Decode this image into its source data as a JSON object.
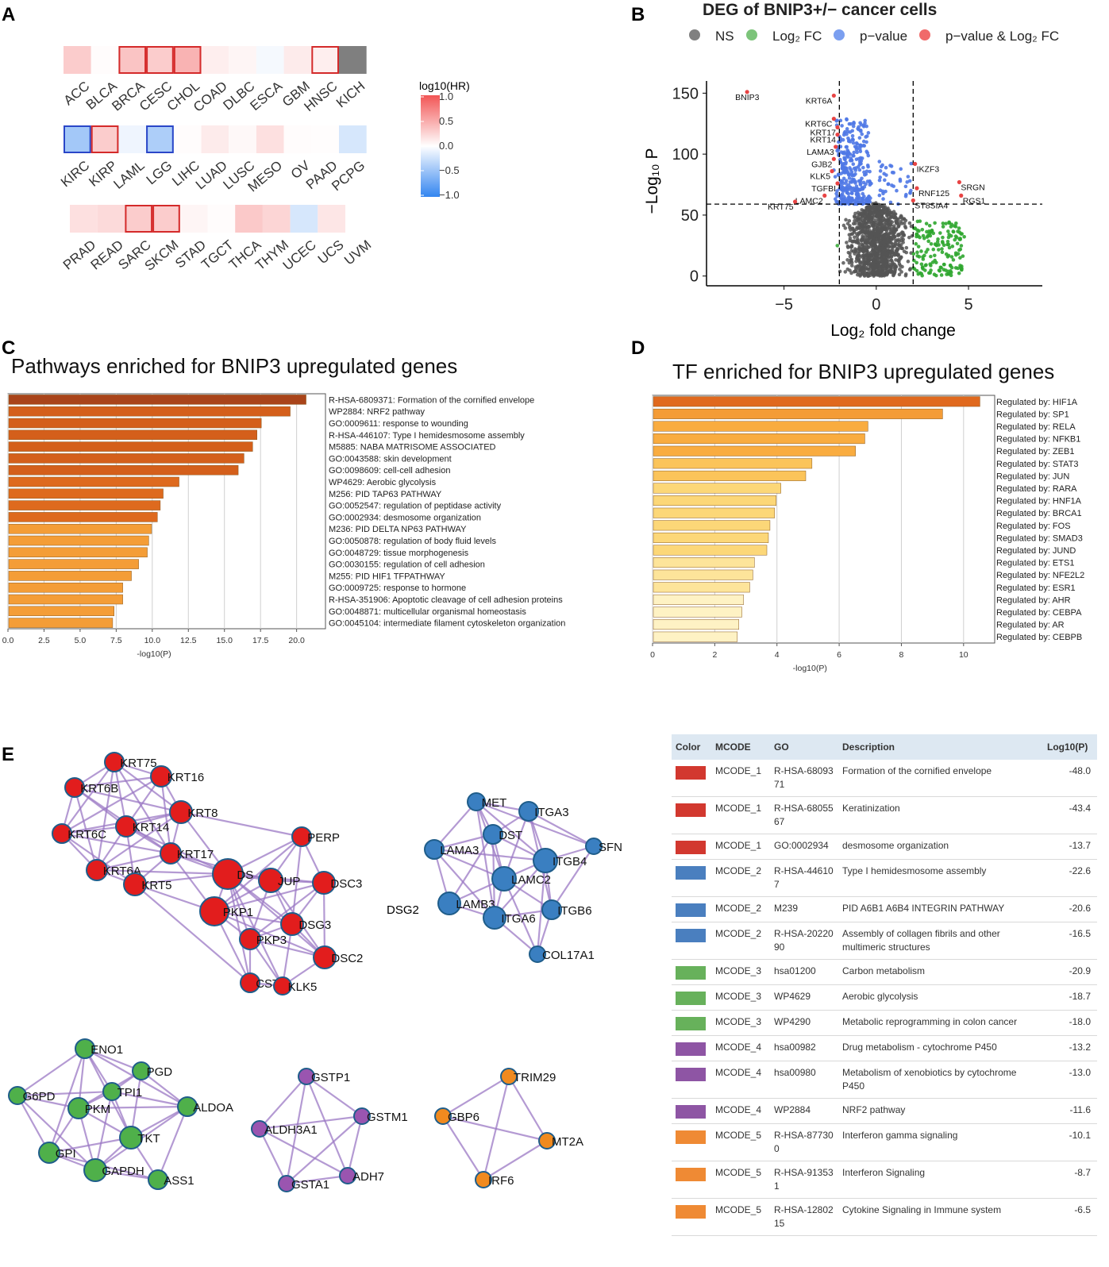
{
  "panels": {
    "A": {
      "letter": "A",
      "legend_title": "log10(HR)",
      "legend_ticks": [
        "1.0",
        "0.5",
        "0.0",
        "−0.5",
        "−1.0"
      ],
      "legend_range": [
        -1.0,
        1.0
      ],
      "rows": [
        {
          "cancers": [
            "ACC",
            "BLCA",
            "BRCA",
            "CESC",
            "CHOL",
            "COAD",
            "DLBC",
            "ESCA",
            "GBM",
            "HNSC",
            "KICH"
          ],
          "values": [
            0.3,
            0.02,
            0.35,
            0.3,
            0.45,
            0.1,
            0.06,
            -0.05,
            0.12,
            0.1,
            null
          ],
          "significant": [
            false,
            false,
            true,
            true,
            true,
            false,
            false,
            false,
            false,
            true,
            false
          ]
        },
        {
          "cancers": [
            "KIRC",
            "KIRP",
            "LAML",
            "LGG",
            "LIHC",
            "LUAD",
            "LUSC",
            "MESO",
            "OV",
            "PAAD",
            "PCPG"
          ],
          "values": [
            -0.45,
            0.3,
            -0.08,
            -0.4,
            0.02,
            0.12,
            0.04,
            0.18,
            0.02,
            0.01,
            -0.2
          ],
          "significant": [
            true,
            true,
            false,
            true,
            false,
            false,
            false,
            false,
            false,
            false,
            false
          ]
        },
        {
          "cancers": [
            "PRAD",
            "READ",
            "SARC",
            "SKCM",
            "STAD",
            "TGCT",
            "THCA",
            "THYM",
            "UCEC",
            "UCS",
            "UVM"
          ],
          "values": [
            0.18,
            0.22,
            0.3,
            0.3,
            0.06,
            0.02,
            0.32,
            0.25,
            -0.2,
            0.15,
            0.0
          ],
          "significant": [
            false,
            false,
            true,
            true,
            false,
            false,
            false,
            false,
            false,
            false,
            false
          ]
        }
      ]
    },
    "B": {
      "letter": "B",
      "title": "DEG of BNIP3+/− cancer cells",
      "legend": [
        {
          "label": "NS",
          "color": "#808080"
        },
        {
          "label": "Log₂ FC",
          "color": "#7cc47a"
        },
        {
          "label": "p−value",
          "color": "#7b9ff0"
        },
        {
          "label": "p−value & Log₂ FC",
          "color": "#f06a6a"
        }
      ],
      "y_axis_label": "−Log₁₀ P",
      "x_axis_label": "Log₂ fold change",
      "x_ticks": [
        -5,
        0,
        5
      ],
      "x_tick_labels": [
        "−5",
        "0",
        "5"
      ],
      "y_ticks": [
        0,
        50,
        100,
        150
      ],
      "xlim": [
        -9.2,
        9.0
      ],
      "ylim": [
        -8,
        160
      ],
      "fc_cutoff": 2,
      "p_cutoff": 59,
      "labels": [
        {
          "gene": "BNIP3",
          "x": -7.0,
          "y": 151
        },
        {
          "gene": "KRT6A",
          "x": -2.3,
          "y": 148
        },
        {
          "gene": "KRT6C",
          "x": -2.3,
          "y": 129
        },
        {
          "gene": "KRT17",
          "x": -2.1,
          "y": 122
        },
        {
          "gene": "KRT14",
          "x": -2.1,
          "y": 116
        },
        {
          "gene": "LAMA3",
          "x": -2.2,
          "y": 106
        },
        {
          "gene": "GJB2",
          "x": -2.3,
          "y": 96
        },
        {
          "gene": "KLK5",
          "x": -2.4,
          "y": 86
        },
        {
          "gene": "TGFBI",
          "x": -2.1,
          "y": 76
        },
        {
          "gene": "LAMC2",
          "x": -2.8,
          "y": 66
        },
        {
          "gene": "KRT75",
          "x": -4.4,
          "y": 61
        },
        {
          "gene": "IKZF3",
          "x": 2.1,
          "y": 92
        },
        {
          "gene": "SRGN",
          "x": 4.5,
          "y": 77
        },
        {
          "gene": "RNF125",
          "x": 2.2,
          "y": 72
        },
        {
          "gene": "RGS1",
          "x": 4.6,
          "y": 66
        },
        {
          "gene": "ST8SIA4",
          "x": 2.0,
          "y": 62
        }
      ]
    },
    "C": {
      "letter": "C",
      "title": "Pathways enriched for BNIP3 upregulated genes",
      "x_label": "-log10(P)",
      "x_ticks": [
        "0.0",
        "2.5",
        "5.0",
        "7.5",
        "10.0",
        "12.5",
        "15.0",
        "17.5",
        "20.0"
      ],
      "max": 22,
      "items": [
        {
          "label": "R-HSA-6809371: Formation of the cornified envelope",
          "value": 20.6,
          "color": "#a9441a"
        },
        {
          "label": "WP2884: NRF2 pathway",
          "value": 19.5,
          "color": "#d45f1b"
        },
        {
          "label": "GO:0009611: response to wounding",
          "value": 17.5,
          "color": "#d45f1b"
        },
        {
          "label": "R-HSA-446107: Type I hemidesmosome assembly",
          "value": 17.2,
          "color": "#d45f1b"
        },
        {
          "label": "M5885: NABA MATRISOME ASSOCIATED",
          "value": 16.9,
          "color": "#d45f1b"
        },
        {
          "label": "GO:0043588: skin development",
          "value": 16.3,
          "color": "#d45f1b"
        },
        {
          "label": "GO:0098609: cell-cell adhesion",
          "value": 15.9,
          "color": "#d45f1b"
        },
        {
          "label": "WP4629: Aerobic glycolysis",
          "value": 11.8,
          "color": "#de6a1e"
        },
        {
          "label": "M256: PID TAP63 PATHWAY",
          "value": 10.7,
          "color": "#de6a1e"
        },
        {
          "label": "GO:0052547: regulation of peptidase activity",
          "value": 10.5,
          "color": "#de6a1e"
        },
        {
          "label": "GO:0002934: desmosome organization",
          "value": 10.3,
          "color": "#de6a1e"
        },
        {
          "label": "M236: PID DELTA NP63 PATHWAY",
          "value": 9.9,
          "color": "#f49d37"
        },
        {
          "label": "GO:0050878: regulation of body fluid levels",
          "value": 9.7,
          "color": "#f49d37"
        },
        {
          "label": "GO:0048729: tissue morphogenesis",
          "value": 9.6,
          "color": "#f49d37"
        },
        {
          "label": "GO:0030155: regulation of cell adhesion",
          "value": 9.0,
          "color": "#f49d37"
        },
        {
          "label": "M255: PID HIF1 TFPATHWAY",
          "value": 8.5,
          "color": "#f49d37"
        },
        {
          "label": "GO:0009725: response to hormone",
          "value": 7.9,
          "color": "#f49d37"
        },
        {
          "label": "R-HSA-351906: Apoptotic cleavage of cell adhesion  proteins",
          "value": 7.9,
          "color": "#f49d37"
        },
        {
          "label": "GO:0048871: multicellular organismal homeostasis",
          "value": 7.3,
          "color": "#f49d37"
        },
        {
          "label": "GO:0045104: intermediate filament cytoskeleton organization",
          "value": 7.2,
          "color": "#f49d37"
        }
      ]
    },
    "D": {
      "letter": "D",
      "title": "TF enriched for BNIP3 upregulated genes",
      "x_label": "-log10(P)",
      "x_ticks": [
        "0",
        "2",
        "4",
        "6",
        "8",
        "10"
      ],
      "max": 11,
      "items": [
        {
          "label": "Regulated by: HIF1A",
          "value": 10.5,
          "color": "#e0691e"
        },
        {
          "label": "Regulated by: SP1",
          "value": 9.3,
          "color": "#f49c36"
        },
        {
          "label": "Regulated by: RELA",
          "value": 6.9,
          "color": "#f9ac40"
        },
        {
          "label": "Regulated by: NFKB1",
          "value": 6.8,
          "color": "#f9ac40"
        },
        {
          "label": "Regulated by: ZEB1",
          "value": 6.5,
          "color": "#f9ac40"
        },
        {
          "label": "Regulated by: STAT3",
          "value": 5.1,
          "color": "#fbc45a"
        },
        {
          "label": "Regulated by: JUN",
          "value": 4.9,
          "color": "#fbc45a"
        },
        {
          "label": "Regulated by: RARA",
          "value": 4.1,
          "color": "#fcd778"
        },
        {
          "label": "Regulated by: HNF1A",
          "value": 3.95,
          "color": "#fcd778"
        },
        {
          "label": "Regulated by: BRCA1",
          "value": 3.9,
          "color": "#fcd778"
        },
        {
          "label": "Regulated by: FOS",
          "value": 3.75,
          "color": "#fcd778"
        },
        {
          "label": "Regulated by: SMAD3",
          "value": 3.7,
          "color": "#fcd778"
        },
        {
          "label": "Regulated by: JUND",
          "value": 3.65,
          "color": "#fcd778"
        },
        {
          "label": "Regulated by: ETS1",
          "value": 3.25,
          "color": "#fde49a"
        },
        {
          "label": "Regulated by: NFE2L2",
          "value": 3.2,
          "color": "#fde49a"
        },
        {
          "label": "Regulated by: ESR1",
          "value": 3.1,
          "color": "#fde49a"
        },
        {
          "label": "Regulated by: AHR",
          "value": 2.9,
          "color": "#fef2c4"
        },
        {
          "label": "Regulated by: CEBPA",
          "value": 2.85,
          "color": "#fef2c4"
        },
        {
          "label": "Regulated by: AR",
          "value": 2.75,
          "color": "#fef2c4"
        },
        {
          "label": "Regulated by: CEBPB",
          "value": 2.7,
          "color": "#fef2c4"
        }
      ]
    },
    "E": {
      "letter": "E",
      "extra_label": "DSG2",
      "table": {
        "headers": [
          "Color",
          "MCODE",
          "GO",
          "Description",
          "Log10(P)"
        ],
        "rows": [
          {
            "color": "#d2382f",
            "mcode": "MCODE_1",
            "go": "R-HSA-6809371",
            "description": "Formation of the cornified envelope",
            "logp": "-48.0"
          },
          {
            "color": "#d2382f",
            "mcode": "MCODE_1",
            "go": "R-HSA-6805567",
            "description": "Keratinization",
            "logp": "-43.4"
          },
          {
            "color": "#d2382f",
            "mcode": "MCODE_1",
            "go": "GO:0002934",
            "description": "desmosome organization",
            "logp": "-13.7"
          },
          {
            "color": "#4a7fbf",
            "mcode": "MCODE_2",
            "go": "R-HSA-446107",
            "description": "Type I hemidesmosome assembly",
            "logp": "-22.6"
          },
          {
            "color": "#4a7fbf",
            "mcode": "MCODE_2",
            "go": "M239",
            "description": "PID A6B1 A6B4 INTEGRIN PATHWAY",
            "logp": "-20.6"
          },
          {
            "color": "#4a7fbf",
            "mcode": "MCODE_2",
            "go": "R-HSA-2022090",
            "description": "Assembly of collagen fibrils and other multimeric structures",
            "logp": "-16.5"
          },
          {
            "color": "#67b15b",
            "mcode": "MCODE_3",
            "go": "hsa01200",
            "description": "Carbon metabolism",
            "logp": "-20.9"
          },
          {
            "color": "#67b15b",
            "mcode": "MCODE_3",
            "go": "WP4629",
            "description": "Aerobic glycolysis",
            "logp": "-18.7"
          },
          {
            "color": "#67b15b",
            "mcode": "MCODE_3",
            "go": "WP4290",
            "description": "Metabolic reprogramming in colon cancer",
            "logp": "-18.0"
          },
          {
            "color": "#8e55a4",
            "mcode": "MCODE_4",
            "go": "hsa00982",
            "description": "Drug metabolism - cytochrome P450",
            "logp": "-13.2"
          },
          {
            "color": "#8e55a4",
            "mcode": "MCODE_4",
            "go": "hsa00980",
            "description": "Metabolism of xenobiotics by cytochrome P450",
            "logp": "-13.0"
          },
          {
            "color": "#8e55a4",
            "mcode": "MCODE_4",
            "go": "WP2884",
            "description": "NRF2 pathway",
            "logp": "-11.6"
          },
          {
            "color": "#ef8a34",
            "mcode": "MCODE_5",
            "go": "R-HSA-877300",
            "description": "Interferon gamma signaling",
            "logp": "-10.1"
          },
          {
            "color": "#ef8a34",
            "mcode": "MCODE_5",
            "go": "R-HSA-913531",
            "description": "Interferon Signaling",
            "logp": "-8.7"
          },
          {
            "color": "#ef8a34",
            "mcode": "MCODE_5",
            "go": "R-HSA-1280215",
            "description": "Cytokine Signaling in Immune system",
            "logp": "-6.5"
          }
        ]
      }
    }
  },
  "chart_data": [
    {
      "type": "heatmap",
      "title": "",
      "legend_title": "log10(HR)",
      "categories": [
        "ACC",
        "BLCA",
        "BRCA",
        "CESC",
        "CHOL",
        "COAD",
        "DLBC",
        "ESCA",
        "GBM",
        "HNSC",
        "KICH",
        "KIRC",
        "KIRP",
        "LAML",
        "LGG",
        "LIHC",
        "LUAD",
        "LUSC",
        "MESO",
        "OV",
        "PAAD",
        "PCPG",
        "PRAD",
        "READ",
        "SARC",
        "SKCM",
        "STAD",
        "TGCT",
        "THCA",
        "THYM",
        "UCEC",
        "UCS",
        "UVM"
      ],
      "values": [
        0.3,
        0.02,
        0.35,
        0.3,
        0.45,
        0.1,
        0.06,
        -0.05,
        0.12,
        0.1,
        null,
        -0.45,
        0.3,
        -0.08,
        -0.4,
        0.02,
        0.12,
        0.04,
        0.18,
        0.02,
        0.01,
        -0.2,
        0.18,
        0.22,
        0.3,
        0.3,
        0.06,
        0.02,
        0.32,
        0.25,
        -0.2,
        0.15,
        0.0
      ],
      "significant": [
        "BRCA",
        "CESC",
        "CHOL",
        "HNSC",
        "KIRC",
        "KIRP",
        "LGG",
        "SARC",
        "SKCM"
      ]
    },
    {
      "type": "scatter",
      "title": "DEG of BNIP3+/− cancer cells",
      "xlabel": "Log₂ fold change",
      "ylabel": "−Log₁₀ P",
      "xlim": [
        -9.2,
        9.0
      ],
      "ylim": [
        -8,
        160
      ],
      "thresholds": {
        "log2fc": 2,
        "neglog10p": 59
      }
    },
    {
      "type": "bar",
      "title": "Pathways enriched for BNIP3 upregulated genes",
      "xlabel": "-log10(P)",
      "values": [
        20.6,
        19.5,
        17.5,
        17.2,
        16.9,
        16.3,
        15.9,
        11.8,
        10.7,
        10.5,
        10.3,
        9.9,
        9.7,
        9.6,
        9.0,
        8.5,
        7.9,
        7.9,
        7.3,
        7.2
      ]
    },
    {
      "type": "bar",
      "title": "TF enriched for BNIP3 upregulated genes",
      "xlabel": "-log10(P)",
      "values": [
        10.5,
        9.3,
        6.9,
        6.8,
        6.5,
        5.1,
        4.9,
        4.1,
        3.95,
        3.9,
        3.75,
        3.7,
        3.65,
        3.25,
        3.2,
        3.1,
        2.9,
        2.85,
        2.75,
        2.7
      ]
    }
  ],
  "network": {
    "clusters": [
      {
        "id": "mcode1",
        "color": "#e21d1d",
        "nodes": [
          "KRT75",
          "KRT16",
          "KRT6B",
          "KRT8",
          "KRT6C",
          "KRT14",
          "KRT17",
          "KRT6A",
          "KRT5",
          "DSP",
          "JUP",
          "PERP",
          "DSC3",
          "PKP1",
          "DSG3",
          "PKP3",
          "DSC2",
          "CSTA",
          "KLK5"
        ],
        "display": [
          "KRT75",
          "KRT16",
          "KRT6B",
          "KRT8",
          "KRT6C",
          "KRT14",
          "KRT17",
          "KRT6A",
          "KRT5",
          "DS",
          "JUP",
          "PERP",
          "DSC3",
          "PKP1",
          "DSG3",
          "PKP3",
          "DSC2",
          "CSTA",
          "KLK5"
        ]
      },
      {
        "id": "mcode2",
        "color": "#3a7fc1",
        "nodes": [
          "MET",
          "ITGA3",
          "DST",
          "SFN",
          "LAMA3",
          "ITGB4",
          "LAMC2",
          "LAMB3",
          "ITGB6",
          "ITGA6",
          "COL17A1"
        ],
        "display": [
          "MET",
          "ITGA3",
          "DST",
          "SFN",
          "LAMA3",
          "ITGB4",
          "LAMC2",
          "LAMB3",
          "ITGB6",
          "ITGA6",
          "COL17A1"
        ]
      },
      {
        "id": "mcode3",
        "color": "#4fb04a",
        "nodes": [
          "ENO1",
          "PGD",
          "G6PD",
          "TPI1",
          "PKM",
          "ALDOA",
          "TKT",
          "GPI",
          "GAPDH",
          "ASS1"
        ],
        "display": [
          "ENO1",
          "PGD",
          "G6PD",
          "TPI1",
          "PKM",
          "ALDOA",
          "TKT",
          "GPI",
          "GAPDH",
          "ASS1"
        ]
      },
      {
        "id": "mcode4",
        "color": "#9a55b0",
        "nodes": [
          "GSTP1",
          "ALDH3A1",
          "GSTM1",
          "ADH7",
          "GSTA1"
        ],
        "display": [
          "GSTP1",
          "ALDH3A1",
          "GSTM1",
          "ADH7",
          "GSTA1"
        ]
      },
      {
        "id": "mcode5",
        "color": "#f08a1f",
        "nodes": [
          "TRIM29",
          "GBP6",
          "MT2A",
          "IRF6"
        ],
        "display": [
          "TRIM29",
          "GBP6",
          "MT2A",
          "IRF6"
        ]
      }
    ]
  }
}
